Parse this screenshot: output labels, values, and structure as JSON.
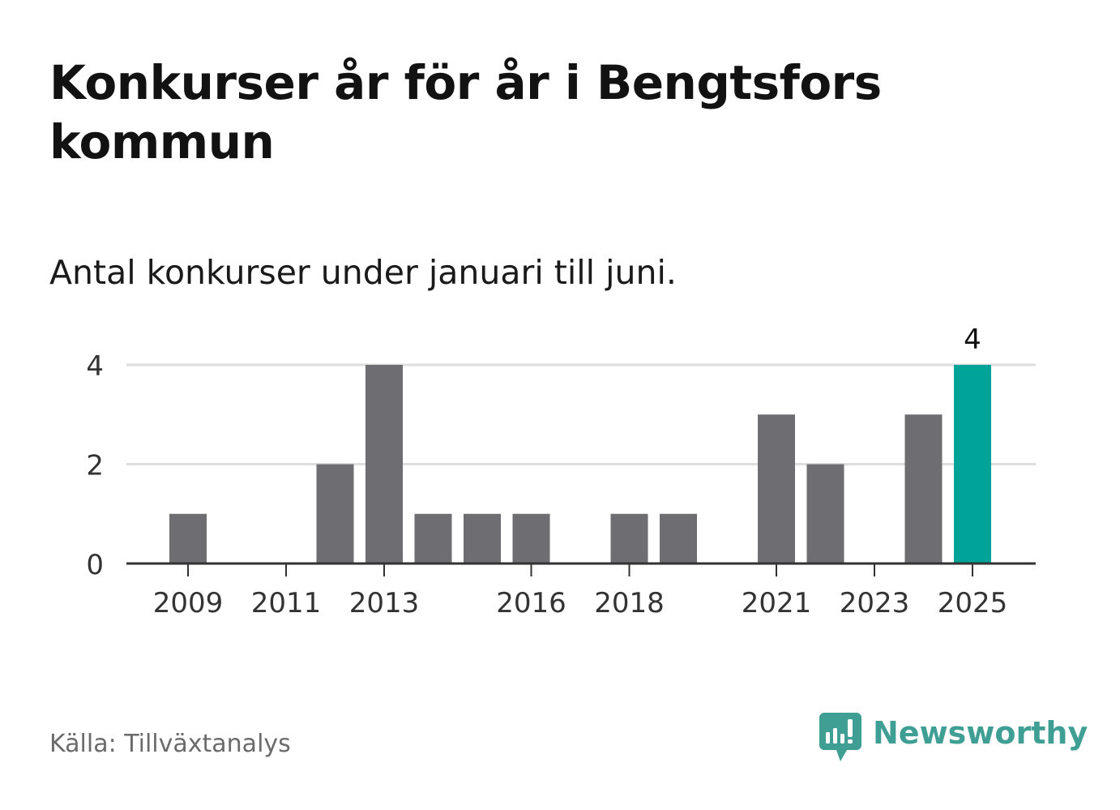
{
  "header": {
    "title": "Konkurser år för år i Bengtsfors kommun",
    "subtitle": "Antal konkurser under januari till juni."
  },
  "footer": {
    "source": "Källa: Tillväxtanalys",
    "brand": "Newsworthy",
    "brand_icon": "newsworthy-logo-icon",
    "brand_color": "#3f9f95"
  },
  "chart_data": {
    "type": "bar",
    "categories": [
      "2009",
      "2010",
      "2011",
      "2012",
      "2013",
      "2014",
      "2015",
      "2016",
      "2017",
      "2018",
      "2019",
      "2020",
      "2021",
      "2022",
      "2023",
      "2024",
      "2025"
    ],
    "values": [
      1,
      0,
      0,
      2,
      4,
      1,
      1,
      1,
      0,
      1,
      1,
      0,
      3,
      2,
      0,
      3,
      4
    ],
    "x_tick_labels": [
      "2009",
      "2011",
      "2013",
      "2016",
      "2018",
      "2021",
      "2023",
      "2025"
    ],
    "y_ticks": [
      0,
      2,
      4
    ],
    "ylim": [
      0,
      4
    ],
    "grid": true,
    "highlight": {
      "category": "2025",
      "value_label": "4"
    },
    "colors": {
      "bar": "#6e6d72",
      "highlight": "#00a398",
      "grid": "#dedede",
      "axis": "#333333",
      "tick_text": "#333333"
    },
    "title": "",
    "xlabel": "",
    "ylabel": ""
  }
}
